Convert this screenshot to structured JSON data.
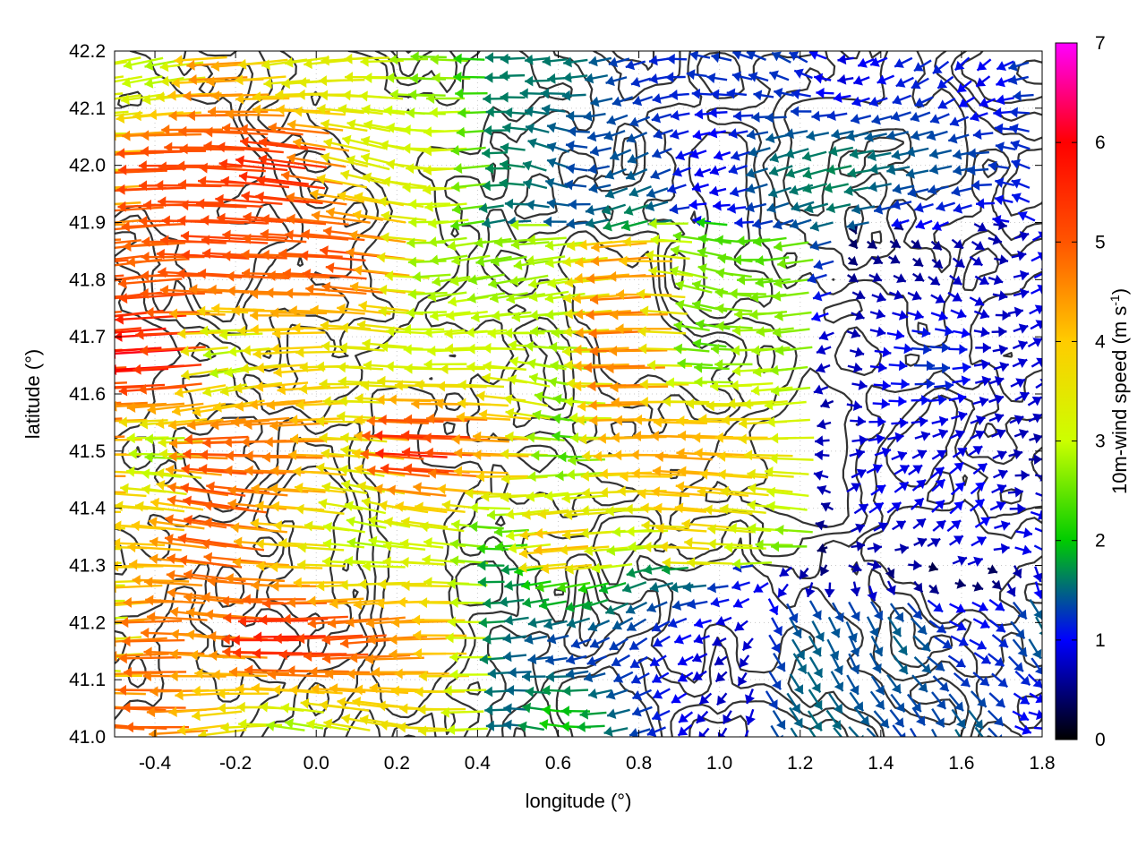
{
  "chart_data": {
    "type": "vector-field",
    "xlabel": "longitude (°)",
    "ylabel": "latitude (°)",
    "colorbar_label": "10m-wind speed (m s",
    "colorbar_label_sup": "-1",
    "colorbar_label_end": ")",
    "xlim": [
      -0.5,
      1.8
    ],
    "ylim": [
      41.0,
      42.2
    ],
    "xticks": [
      "-0.4",
      "-0.2",
      "0.0",
      "0.2",
      "0.4",
      "0.6",
      "0.8",
      "1.0",
      "1.2",
      "1.4",
      "1.6",
      "1.8"
    ],
    "yticks": [
      "41.0",
      "41.1",
      "41.2",
      "41.3",
      "41.4",
      "41.5",
      "41.6",
      "41.7",
      "41.8",
      "41.9",
      "42.0",
      "42.1",
      "42.2"
    ],
    "colorbar_ticks": [
      "0",
      "1",
      "2",
      "3",
      "4",
      "5",
      "6",
      "7"
    ],
    "colorbar_range": [
      0,
      7
    ],
    "colormap": [
      "#000000",
      "#0000ff",
      "#00cc00",
      "#ccff00",
      "#ffcc00",
      "#ff5500",
      "#ff0000",
      "#ff00ff"
    ],
    "grid": "dotted",
    "contour_color": "#333333",
    "vector_grid": {
      "nx": 46,
      "ny": 38
    },
    "wind_regimes": [
      {
        "region": "west",
        "lon": [
          -0.5,
          0.45
        ],
        "lat": [
          41.0,
          42.2
        ],
        "u": -4.5,
        "v": 0.1,
        "speed": 5.2
      },
      {
        "region": "central",
        "lon": [
          0.45,
          1.25
        ],
        "lat": [
          41.3,
          41.9
        ],
        "u": -3.8,
        "v": 0.05,
        "speed": 3.8
      },
      {
        "region": "north",
        "lon": [
          0.4,
          1.8
        ],
        "lat": [
          41.9,
          42.2
        ],
        "u": -1.2,
        "v": 0.0,
        "speed": 1.8
      },
      {
        "region": "east",
        "lon": [
          1.3,
          1.8
        ],
        "lat": [
          41.3,
          41.9
        ],
        "u": 1.0,
        "v": 0.0,
        "speed": 1.2
      },
      {
        "region": "southeast",
        "lon": [
          1.1,
          1.8
        ],
        "lat": [
          41.0,
          41.25
        ],
        "u": 0.8,
        "v": -0.6,
        "speed": 1.6
      }
    ]
  }
}
